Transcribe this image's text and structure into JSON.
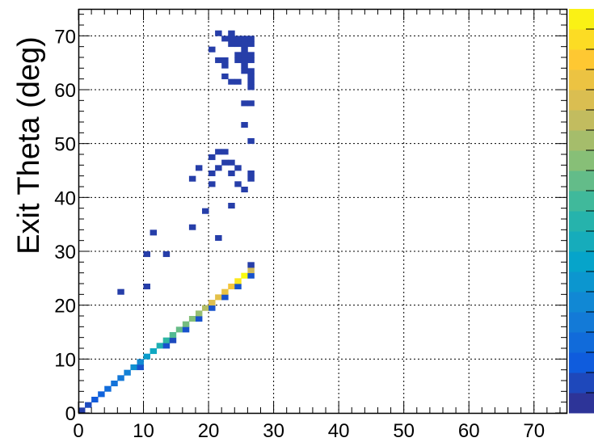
{
  "chart_data": {
    "type": "heatmap",
    "title": "",
    "xlabel": "",
    "ylabel": "Exit Theta (deg)",
    "xlim": [
      0,
      75
    ],
    "ylim": [
      0,
      75
    ],
    "bin_size": 1,
    "grid": true,
    "x_ticks": [
      "0",
      "10",
      "20",
      "30",
      "40",
      "50",
      "60",
      "70"
    ],
    "y_ticks": [
      "0",
      "10",
      "20",
      "30",
      "40",
      "50",
      "60",
      "70"
    ],
    "colorbar": {
      "palette": [
        "#352a87",
        "#0f5cdd",
        "#1481d6",
        "#06a4ca",
        "#2eb7a4",
        "#87bf77",
        "#d1bb59",
        "#fec832",
        "#f9fb0e"
      ]
    },
    "diagonal_bins": [
      {
        "x": 0,
        "y": 0,
        "v": 0.05
      },
      {
        "x": 1,
        "y": 1,
        "v": 0.08
      },
      {
        "x": 2,
        "y": 2,
        "v": 0.12
      },
      {
        "x": 3,
        "y": 3,
        "v": 0.15
      },
      {
        "x": 4,
        "y": 4,
        "v": 0.18
      },
      {
        "x": 5,
        "y": 5,
        "v": 0.2
      },
      {
        "x": 6,
        "y": 6,
        "v": 0.22
      },
      {
        "x": 7,
        "y": 7,
        "v": 0.25
      },
      {
        "x": 8,
        "y": 8,
        "v": 0.3
      },
      {
        "x": 9,
        "y": 8,
        "v": 0.1
      },
      {
        "x": 9,
        "y": 9,
        "v": 0.28
      },
      {
        "x": 10,
        "y": 10,
        "v": 0.35
      },
      {
        "x": 11,
        "y": 11,
        "v": 0.4
      },
      {
        "x": 12,
        "y": 12,
        "v": 0.45
      },
      {
        "x": 13,
        "y": 12,
        "v": 0.1
      },
      {
        "x": 13,
        "y": 13,
        "v": 0.5
      },
      {
        "x": 14,
        "y": 13,
        "v": 0.08
      },
      {
        "x": 14,
        "y": 14,
        "v": 0.55
      },
      {
        "x": 15,
        "y": 15,
        "v": 0.58
      },
      {
        "x": 16,
        "y": 15,
        "v": 0.1
      },
      {
        "x": 16,
        "y": 16,
        "v": 0.6
      },
      {
        "x": 17,
        "y": 17,
        "v": 0.62
      },
      {
        "x": 18,
        "y": 17,
        "v": 0.1
      },
      {
        "x": 18,
        "y": 18,
        "v": 0.65
      },
      {
        "x": 19,
        "y": 19,
        "v": 0.7
      },
      {
        "x": 20,
        "y": 19,
        "v": 0.1
      },
      {
        "x": 20,
        "y": 20,
        "v": 0.78
      },
      {
        "x": 21,
        "y": 21,
        "v": 0.8
      },
      {
        "x": 22,
        "y": 21,
        "v": 0.1
      },
      {
        "x": 22,
        "y": 22,
        "v": 0.82
      },
      {
        "x": 23,
        "y": 23,
        "v": 0.85
      },
      {
        "x": 24,
        "y": 23,
        "v": 0.1
      },
      {
        "x": 24,
        "y": 24,
        "v": 0.95
      },
      {
        "x": 25,
        "y": 25,
        "v": 1.0
      },
      {
        "x": 26,
        "y": 25,
        "v": 0.1
      },
      {
        "x": 26,
        "y": 26,
        "v": 0.75
      },
      {
        "x": 26,
        "y": 27,
        "v": 0.05
      }
    ],
    "scattered_bins": [
      {
        "x": 6,
        "y": 22
      },
      {
        "x": 10,
        "y": 23
      },
      {
        "x": 10,
        "y": 29
      },
      {
        "x": 13,
        "y": 29
      },
      {
        "x": 11,
        "y": 33
      },
      {
        "x": 17,
        "y": 34
      },
      {
        "x": 19,
        "y": 37
      },
      {
        "x": 21,
        "y": 32
      },
      {
        "x": 23,
        "y": 38
      },
      {
        "x": 17,
        "y": 43
      },
      {
        "x": 18,
        "y": 45
      },
      {
        "x": 25,
        "y": 41
      },
      {
        "x": 24,
        "y": 42
      },
      {
        "x": 20,
        "y": 42
      },
      {
        "x": 20,
        "y": 44
      },
      {
        "x": 21,
        "y": 45
      },
      {
        "x": 23,
        "y": 44
      },
      {
        "x": 26,
        "y": 43
      },
      {
        "x": 26,
        "y": 44
      },
      {
        "x": 22,
        "y": 46
      },
      {
        "x": 23,
        "y": 46
      },
      {
        "x": 24,
        "y": 45
      },
      {
        "x": 20,
        "y": 47
      },
      {
        "x": 21,
        "y": 48
      },
      {
        "x": 22,
        "y": 48
      }
    ],
    "region": {
      "x_range": [
        4,
        27
      ],
      "y_range": [
        48,
        71
      ],
      "diag_top": [
        19,
        71
      ],
      "diag_bottom": [
        27,
        48
      ],
      "density": 0.82,
      "edge_density": 0.35
    }
  }
}
